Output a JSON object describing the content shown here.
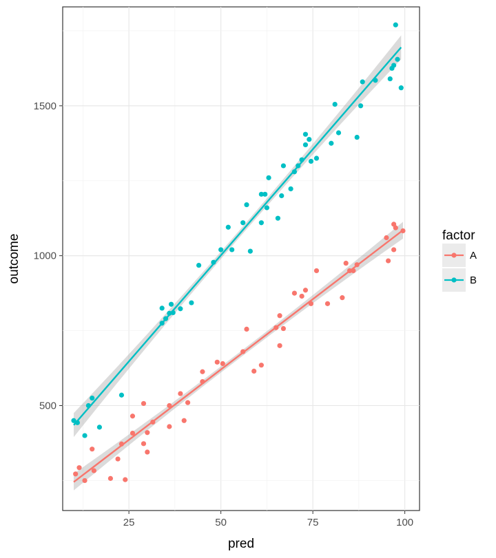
{
  "chart_data": {
    "type": "scatter",
    "title": "",
    "xlabel": "pred",
    "ylabel": "outcome",
    "xlim": [
      7,
      104
    ],
    "ylim": [
      150,
      1830
    ],
    "x_ticks": [
      25,
      50,
      75,
      100
    ],
    "y_ticks": [
      500,
      1000,
      1500
    ],
    "grid": true,
    "legend": {
      "title": "factor",
      "position": "right",
      "entries": [
        "A",
        "B"
      ]
    },
    "series": [
      {
        "name": "A",
        "color": "#F8766D",
        "fit": {
          "x": [
            10,
            99.5
          ],
          "y": [
            245,
            1085
          ],
          "band_halfwidth_ends": 28,
          "band_halfwidth_mid": 10
        },
        "points": [
          {
            "x": 10.5,
            "y": 272
          },
          {
            "x": 11.5,
            "y": 293
          },
          {
            "x": 13,
            "y": 250
          },
          {
            "x": 15,
            "y": 355
          },
          {
            "x": 15.5,
            "y": 283
          },
          {
            "x": 20,
            "y": 257
          },
          {
            "x": 22,
            "y": 322
          },
          {
            "x": 23,
            "y": 372
          },
          {
            "x": 24,
            "y": 253
          },
          {
            "x": 26,
            "y": 408
          },
          {
            "x": 26,
            "y": 465
          },
          {
            "x": 29,
            "y": 373
          },
          {
            "x": 29,
            "y": 507
          },
          {
            "x": 30,
            "y": 345
          },
          {
            "x": 30,
            "y": 410
          },
          {
            "x": 31.5,
            "y": 445
          },
          {
            "x": 36,
            "y": 430
          },
          {
            "x": 36,
            "y": 500
          },
          {
            "x": 39,
            "y": 540
          },
          {
            "x": 40,
            "y": 450
          },
          {
            "x": 41,
            "y": 510
          },
          {
            "x": 45,
            "y": 580
          },
          {
            "x": 45,
            "y": 613
          },
          {
            "x": 49,
            "y": 645
          },
          {
            "x": 50.5,
            "y": 640
          },
          {
            "x": 56,
            "y": 680
          },
          {
            "x": 57,
            "y": 755
          },
          {
            "x": 59,
            "y": 615
          },
          {
            "x": 61,
            "y": 635
          },
          {
            "x": 65,
            "y": 760
          },
          {
            "x": 66,
            "y": 700
          },
          {
            "x": 66,
            "y": 800
          },
          {
            "x": 67,
            "y": 757
          },
          {
            "x": 70,
            "y": 875
          },
          {
            "x": 72,
            "y": 865
          },
          {
            "x": 73,
            "y": 885
          },
          {
            "x": 74.5,
            "y": 840
          },
          {
            "x": 76,
            "y": 950
          },
          {
            "x": 79,
            "y": 840
          },
          {
            "x": 83,
            "y": 860
          },
          {
            "x": 84,
            "y": 975
          },
          {
            "x": 85,
            "y": 950
          },
          {
            "x": 86,
            "y": 950
          },
          {
            "x": 87,
            "y": 970
          },
          {
            "x": 95,
            "y": 1060
          },
          {
            "x": 95.5,
            "y": 983
          },
          {
            "x": 97,
            "y": 1020
          },
          {
            "x": 97,
            "y": 1105
          },
          {
            "x": 97.5,
            "y": 1093
          },
          {
            "x": 99.5,
            "y": 1083
          }
        ]
      },
      {
        "name": "B",
        "color": "#00BFC4",
        "fit": {
          "x": [
            10,
            99
          ],
          "y": [
            435,
            1695
          ],
          "band_halfwidth_ends": 40,
          "band_halfwidth_mid": 12
        },
        "points": [
          {
            "x": 10,
            "y": 450
          },
          {
            "x": 11,
            "y": 443
          },
          {
            "x": 13,
            "y": 400
          },
          {
            "x": 14,
            "y": 500
          },
          {
            "x": 15,
            "y": 525
          },
          {
            "x": 17,
            "y": 428
          },
          {
            "x": 23,
            "y": 535
          },
          {
            "x": 34,
            "y": 825
          },
          {
            "x": 34,
            "y": 775
          },
          {
            "x": 35,
            "y": 790
          },
          {
            "x": 36,
            "y": 808
          },
          {
            "x": 36.5,
            "y": 838
          },
          {
            "x": 37,
            "y": 810
          },
          {
            "x": 39,
            "y": 823
          },
          {
            "x": 42,
            "y": 843
          },
          {
            "x": 44,
            "y": 968
          },
          {
            "x": 48,
            "y": 978
          },
          {
            "x": 50,
            "y": 1020
          },
          {
            "x": 52,
            "y": 1095
          },
          {
            "x": 53,
            "y": 1020
          },
          {
            "x": 56,
            "y": 1110
          },
          {
            "x": 57,
            "y": 1170
          },
          {
            "x": 58,
            "y": 1015
          },
          {
            "x": 61,
            "y": 1110
          },
          {
            "x": 61,
            "y": 1205
          },
          {
            "x": 62,
            "y": 1205
          },
          {
            "x": 62.5,
            "y": 1160
          },
          {
            "x": 63,
            "y": 1260
          },
          {
            "x": 65.5,
            "y": 1125
          },
          {
            "x": 66.5,
            "y": 1200
          },
          {
            "x": 67,
            "y": 1300
          },
          {
            "x": 69,
            "y": 1223
          },
          {
            "x": 70,
            "y": 1280
          },
          {
            "x": 71,
            "y": 1300
          },
          {
            "x": 72,
            "y": 1320
          },
          {
            "x": 73,
            "y": 1370
          },
          {
            "x": 73,
            "y": 1405
          },
          {
            "x": 74,
            "y": 1388
          },
          {
            "x": 74.5,
            "y": 1315
          },
          {
            "x": 76,
            "y": 1325
          },
          {
            "x": 80,
            "y": 1375
          },
          {
            "x": 81,
            "y": 1505
          },
          {
            "x": 82,
            "y": 1410
          },
          {
            "x": 87,
            "y": 1395
          },
          {
            "x": 88,
            "y": 1500
          },
          {
            "x": 88.5,
            "y": 1580
          },
          {
            "x": 92,
            "y": 1585
          },
          {
            "x": 96,
            "y": 1590
          },
          {
            "x": 96.5,
            "y": 1625
          },
          {
            "x": 97,
            "y": 1635
          },
          {
            "x": 97.5,
            "y": 1770
          },
          {
            "x": 98,
            "y": 1655
          },
          {
            "x": 99,
            "y": 1560
          }
        ]
      }
    ]
  }
}
